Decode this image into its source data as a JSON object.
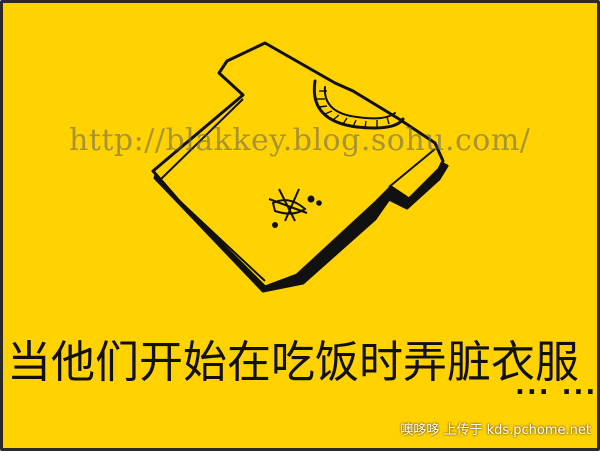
{
  "background_color": "#ffd200",
  "ink_color": "#111111",
  "frame_color": "#2a2a2a",
  "watermark": {
    "url_text": "http://blakkey.blog.sohu.com/"
  },
  "caption": {
    "main_text": "当他们开始在吃饭时弄脏衣服",
    "ellipsis": "... ..."
  },
  "credit": {
    "text": "噢哆哆 上传于 kds.pchome.net"
  },
  "illustration": {
    "subject": "t-shirt-drawing",
    "stain": "stain-mark"
  }
}
